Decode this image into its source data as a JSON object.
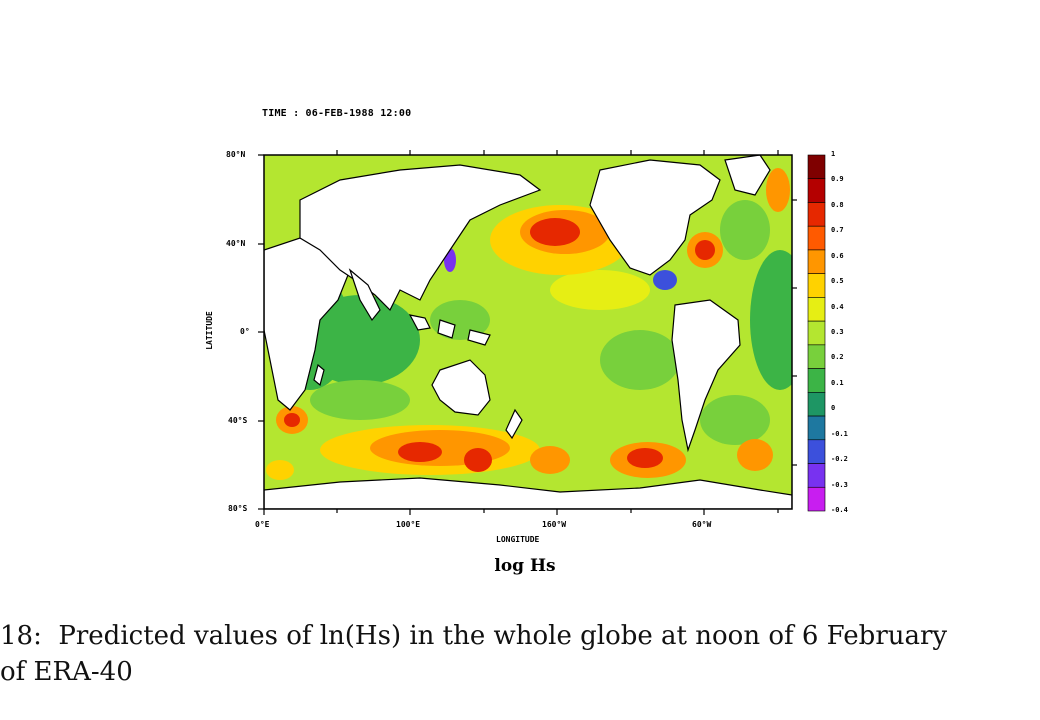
{
  "figure": {
    "time_label": "TIME : 06-FEB-1988 12:00",
    "panel_title": "log Hs",
    "caption_line1": "18:  Predicted values of ln(Hs) in the whole globe at noon of 6 February",
    "caption_line2": "of ERA-40"
  },
  "chart_data": {
    "type": "heatmap",
    "title": "TIME : 06-FEB-1988 12:00",
    "subtitle": "log Hs",
    "xlabel": "LONGITUDE",
    "ylabel": "LATITUDE",
    "x_ticks": [
      "0°E",
      "100°E",
      "160°W",
      "60°W"
    ],
    "y_ticks": [
      "80°N",
      "40°N",
      "0°",
      "40°S",
      "80°S"
    ],
    "xlim": [
      0,
      360
    ],
    "ylim": [
      -80,
      80
    ],
    "colorbar": {
      "ticks": [
        "1",
        "0.9",
        "0.8",
        "0.7",
        "0.6",
        "0.5",
        "0.4",
        "0.3",
        "0.2",
        "0.1",
        "0",
        "-0.1",
        "-0.2",
        "-0.3",
        "-0.4"
      ],
      "colors": [
        "#7f0000",
        "#b40000",
        "#e62800",
        "#ff5a00",
        "#ff9600",
        "#ffd200",
        "#e6ee14",
        "#b4e630",
        "#78d03c",
        "#3cb446",
        "#1e9664",
        "#1e78a0",
        "#3c50dc",
        "#7832f0",
        "#c81ef0"
      ]
    }
  }
}
